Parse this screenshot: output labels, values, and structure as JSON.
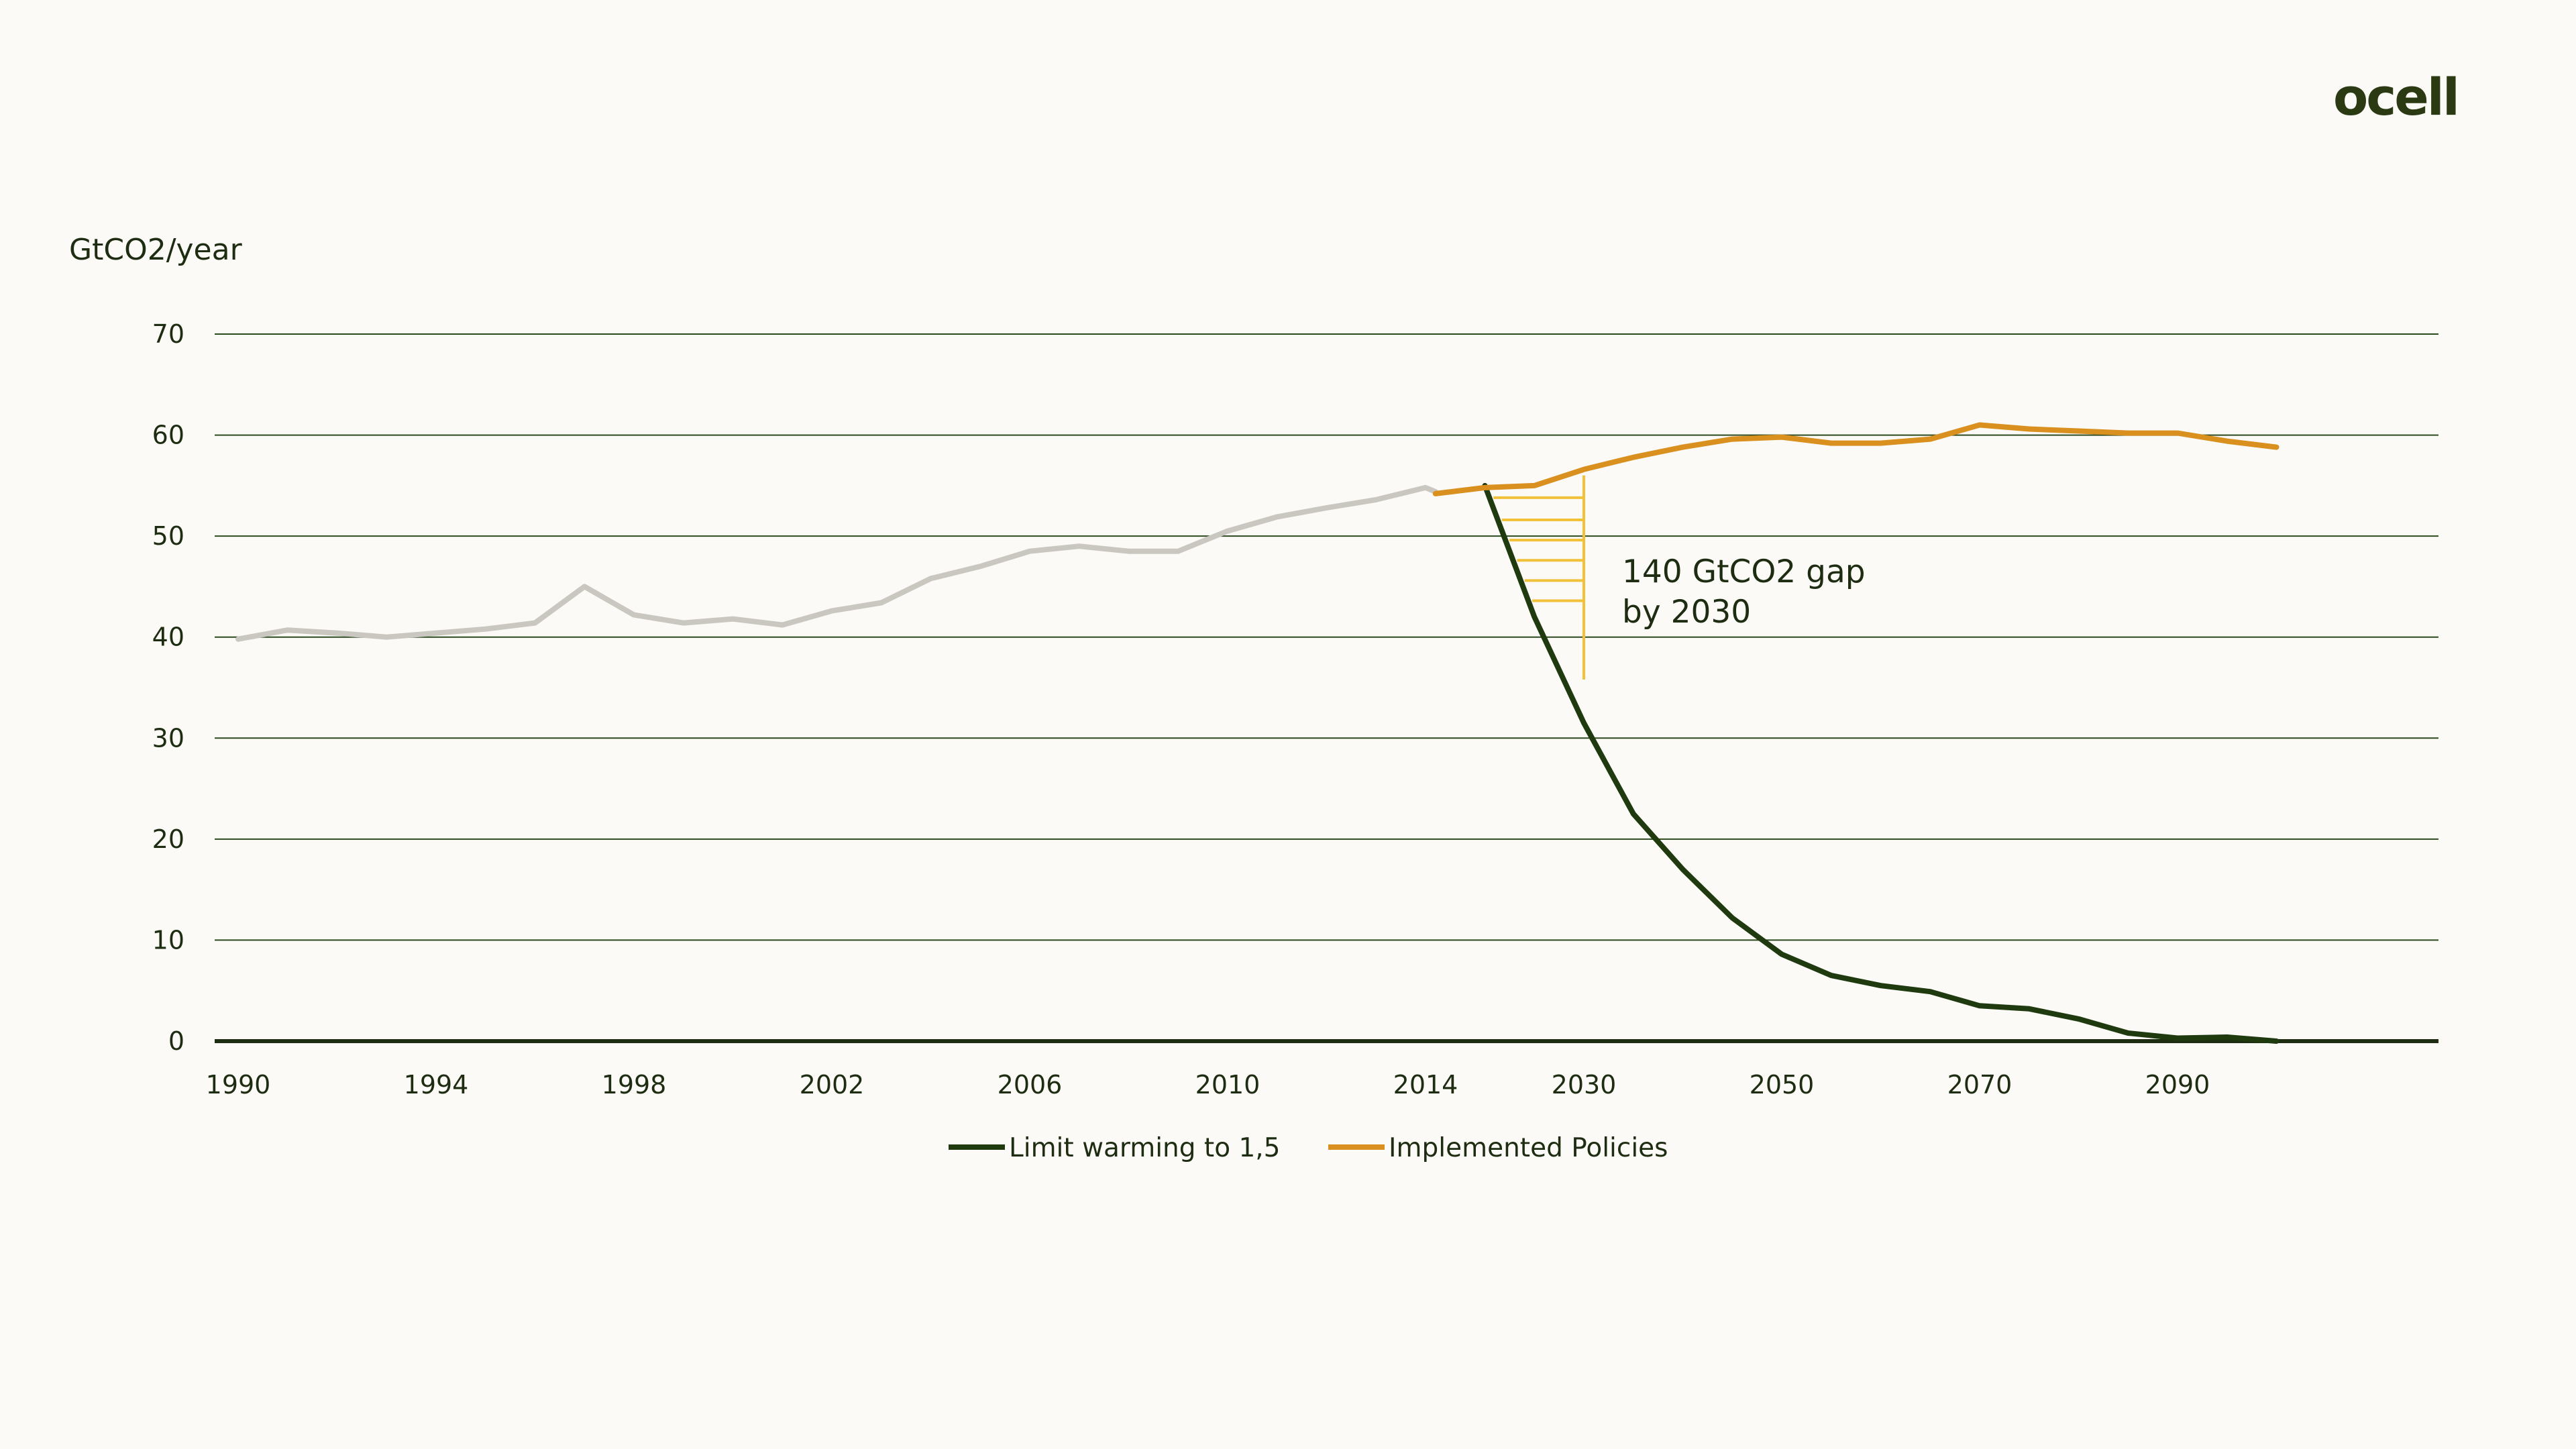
{
  "brand": {
    "logo_text": "ocell"
  },
  "chart_data": {
    "type": "line",
    "ylabel": "GtCO2/year",
    "xlabel": "",
    "ylim": [
      0,
      70
    ],
    "yticks": [
      0,
      10,
      20,
      30,
      40,
      50,
      60,
      70
    ],
    "xticks": [
      1990,
      1994,
      1998,
      2002,
      2006,
      2010,
      2014,
      2030,
      2050,
      2070,
      2090
    ],
    "grid": true,
    "legend_position": "bottom-center",
    "colors": {
      "historical": "#c9c7bf",
      "limit": "#1e3a0e",
      "policies": "#d9901f",
      "gap": "#f2c13a",
      "grid": "#2d4a1e"
    },
    "historical": {
      "x": [
        1990,
        1991,
        1992,
        1993,
        1994,
        1995,
        1996,
        1997,
        1998,
        1999,
        2000,
        2001,
        2002,
        2003,
        2004,
        2005,
        2006,
        2007,
        2008,
        2009,
        2010,
        2011,
        2012,
        2013,
        2014,
        2015
      ],
      "values": [
        39.8,
        40.7,
        40.4,
        40.0,
        40.4,
        40.8,
        41.4,
        45.0,
        42.2,
        41.4,
        41.8,
        41.2,
        42.6,
        43.4,
        45.8,
        47.0,
        48.5,
        49.0,
        48.5,
        48.5,
        50.5,
        51.9,
        52.8,
        53.6,
        54.8,
        54.4
      ]
    },
    "series": [
      {
        "name": "Limit warming to 1,5",
        "x": [
          2020,
          2025,
          2030,
          2035,
          2040,
          2045,
          2050,
          2055,
          2060,
          2065,
          2070,
          2075,
          2080,
          2085,
          2090,
          2095,
          2100
        ],
        "values": [
          55.0,
          42.0,
          31.5,
          22.5,
          17.0,
          12.2,
          8.6,
          6.5,
          5.5,
          4.9,
          3.5,
          3.2,
          2.2,
          0.8,
          0.3,
          0.4,
          0.0
        ]
      },
      {
        "name": "Implemented Policies",
        "x": [
          2015,
          2020,
          2025,
          2030,
          2035,
          2040,
          2045,
          2050,
          2055,
          2060,
          2065,
          2070,
          2075,
          2080,
          2085,
          2090,
          2095,
          2100
        ],
        "values": [
          54.2,
          54.8,
          55.0,
          56.6,
          57.8,
          58.8,
          59.6,
          59.8,
          59.2,
          59.2,
          59.6,
          61.0,
          60.6,
          60.4,
          60.2,
          60.2,
          59.4,
          58.8
        ]
      }
    ],
    "annotation": {
      "line1": "140 GtCO2 gap",
      "line2": "by 2030",
      "gap_year": 2030,
      "gap_low": 35.8,
      "gap_high": 56.0
    }
  }
}
